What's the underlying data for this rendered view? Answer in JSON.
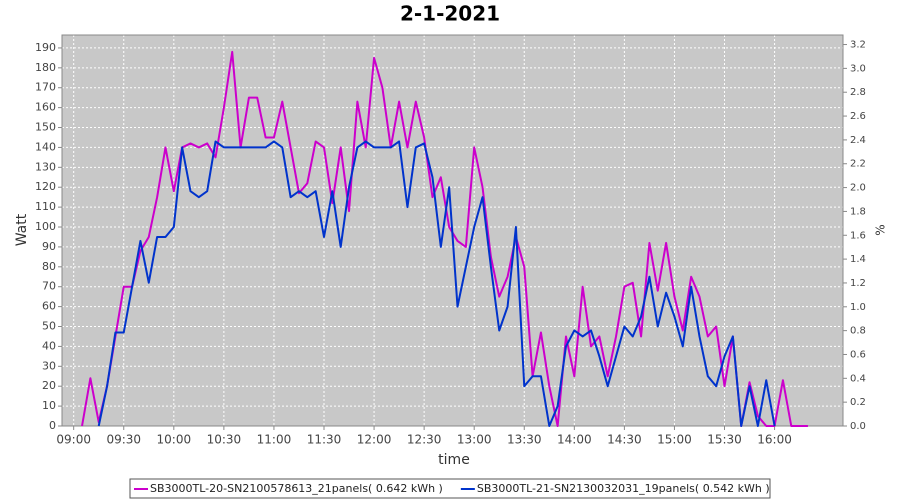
{
  "chart_data": {
    "type": "line",
    "title": "2-1-2021",
    "xlabel": "time",
    "ylabel": "Watt",
    "y2label": "%",
    "x": [
      "09:05",
      "09:10",
      "09:15",
      "09:20",
      "09:25",
      "09:30",
      "09:35",
      "09:40",
      "09:45",
      "09:50",
      "09:55",
      "10:00",
      "10:05",
      "10:10",
      "10:15",
      "10:20",
      "10:25",
      "10:30",
      "10:35",
      "10:40",
      "10:45",
      "10:50",
      "10:55",
      "11:00",
      "11:05",
      "11:10",
      "11:15",
      "11:20",
      "11:25",
      "11:30",
      "11:35",
      "11:40",
      "11:45",
      "11:50",
      "11:55",
      "12:00",
      "12:05",
      "12:10",
      "12:15",
      "12:20",
      "12:25",
      "12:30",
      "12:35",
      "12:40",
      "12:45",
      "12:50",
      "12:55",
      "13:00",
      "13:05",
      "13:10",
      "13:15",
      "13:20",
      "13:25",
      "13:30",
      "13:35",
      "13:40",
      "13:45",
      "13:50",
      "13:55",
      "14:00",
      "14:05",
      "14:10",
      "14:15",
      "14:20",
      "14:25",
      "14:30",
      "14:35",
      "14:40",
      "14:45",
      "14:50",
      "14:55",
      "15:00",
      "15:05",
      "15:10",
      "15:15",
      "15:20",
      "15:25",
      "15:30",
      "15:35",
      "15:40",
      "15:45",
      "15:50",
      "15:55",
      "16:00",
      "16:05",
      "16:10",
      "16:15",
      "16:20"
    ],
    "series": [
      {
        "name": "SB3000TL-20-SN2100578613_21panels( 0.642 kWh )",
        "color": "#cc00cc",
        "values": [
          0,
          24,
          2,
          20,
          45,
          70,
          70,
          88,
          95,
          115,
          140,
          118,
          140,
          142,
          140,
          142,
          135,
          160,
          188,
          140,
          165,
          165,
          145,
          145,
          163,
          140,
          117,
          122,
          143,
          140,
          112,
          140,
          108,
          163,
          140,
          185,
          170,
          140,
          163,
          140,
          163,
          145,
          115,
          125,
          100,
          93,
          90,
          140,
          120,
          85,
          65,
          75,
          95,
          80,
          25,
          47,
          20,
          0,
          45,
          25,
          70,
          40,
          45,
          25,
          45,
          70,
          72,
          45,
          92,
          68,
          92,
          65,
          48,
          75,
          65,
          45,
          50,
          20,
          45,
          0,
          22,
          5,
          0,
          0,
          23,
          0,
          0,
          0
        ]
      },
      {
        "name": "SB3000TL-21-SN2130032031_19panels( 0.542 kWh )",
        "color": "#0033cc",
        "values": [
          null,
          null,
          0,
          20,
          47,
          47,
          70,
          93,
          72,
          95,
          95,
          100,
          140,
          118,
          115,
          118,
          143,
          140,
          140,
          140,
          140,
          140,
          140,
          143,
          140,
          115,
          118,
          115,
          118,
          95,
          118,
          90,
          120,
          140,
          143,
          140,
          140,
          140,
          143,
          110,
          140,
          142,
          125,
          90,
          120,
          60,
          80,
          100,
          115,
          80,
          48,
          60,
          100,
          20,
          25,
          25,
          0,
          10,
          40,
          48,
          45,
          48,
          35,
          20,
          35,
          50,
          45,
          55,
          75,
          50,
          67,
          55,
          40,
          70,
          45,
          25,
          20,
          35,
          45,
          0,
          20,
          0,
          23,
          0,
          null,
          null,
          null,
          null
        ]
      }
    ],
    "xlim": [
      "08:53",
      "16:41"
    ],
    "xticks": [
      "09:00",
      "09:30",
      "10:00",
      "10:30",
      "11:00",
      "11:30",
      "12:00",
      "12:30",
      "13:00",
      "13:30",
      "14:00",
      "14:30",
      "15:00",
      "15:30",
      "16:00"
    ],
    "ylim": [
      0,
      196.5
    ],
    "yticks": [
      0,
      10,
      20,
      30,
      40,
      50,
      60,
      70,
      80,
      90,
      100,
      110,
      120,
      130,
      140,
      150,
      160,
      170,
      180,
      190
    ],
    "y2lim": [
      0,
      3.28
    ],
    "y2ticks": [
      {
        "value": 0,
        "label": "0.0"
      },
      {
        "value": 0.2,
        "label": "0.2"
      },
      {
        "value": 0.4,
        "label": "0.4"
      },
      {
        "value": 0.6,
        "label": "0.6"
      },
      {
        "value": 0.8,
        "label": "0.8"
      },
      {
        "value": 1,
        "label": "1.0"
      },
      {
        "value": 1.2,
        "label": "1.2"
      },
      {
        "value": 1.4,
        "label": "1.4"
      },
      {
        "value": 1.6,
        "label": "1.6"
      },
      {
        "value": 1.8,
        "label": "1.8"
      },
      {
        "value": 2,
        "label": "2.0"
      },
      {
        "value": 2.2,
        "label": "2.2"
      },
      {
        "value": 2.4,
        "label": "2.4"
      },
      {
        "value": 2.6,
        "label": "2.6"
      },
      {
        "value": 2.8,
        "label": "2.8"
      },
      {
        "value": 3,
        "label": "3.0"
      },
      {
        "value": 3.2,
        "label": "3.2"
      }
    ],
    "grid": true
  }
}
